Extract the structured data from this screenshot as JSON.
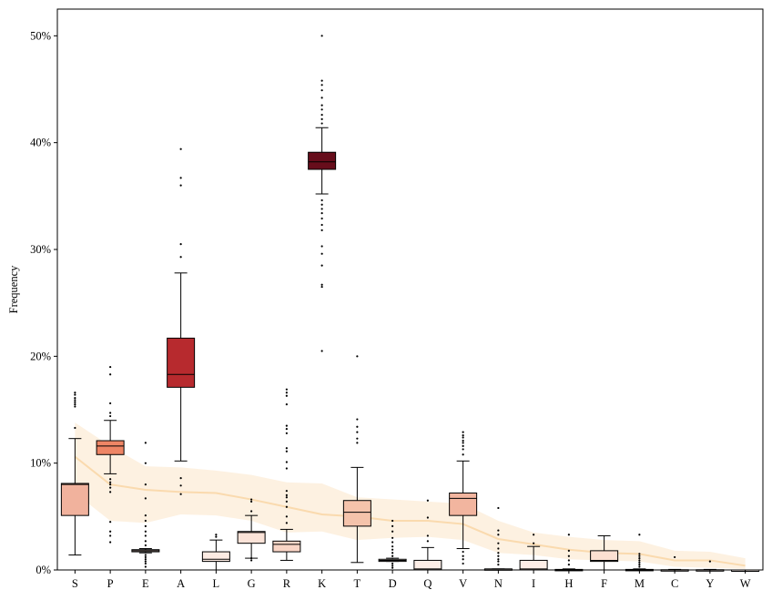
{
  "chart_data": {
    "type": "box",
    "title": "",
    "xlabel": "",
    "ylabel": "Frequency",
    "categories": [
      "S",
      "P",
      "E",
      "A",
      "L",
      "G",
      "R",
      "K",
      "T",
      "D",
      "Q",
      "V",
      "N",
      "I",
      "H",
      "F",
      "M",
      "C",
      "Y",
      "W"
    ],
    "ylim": [
      0,
      52.5
    ],
    "yticks": [
      0,
      10,
      20,
      30,
      40,
      50
    ],
    "ytick_labels": [
      "0%",
      "10%",
      "20%",
      "30%",
      "40%",
      "50%"
    ],
    "grid": false,
    "legend": "none",
    "boxes": [
      {
        "label": "S",
        "whislo": 1.4,
        "q1": 5.1,
        "med": 8.0,
        "q3": 8.1,
        "whishi": 12.3,
        "fliers": [
          13.3,
          15.3,
          15.5,
          15.7,
          15.9,
          16.1,
          16.4,
          16.6
        ],
        "color": "#f1b29d"
      },
      {
        "label": "P",
        "whislo": 9.0,
        "q1": 10.8,
        "med": 11.6,
        "q3": 12.1,
        "whishi": 14.0,
        "fliers": [
          2.6,
          3.2,
          3.6,
          4.5,
          7.3,
          7.7,
          8.0,
          8.2,
          8.5,
          14.4,
          14.7,
          15.6,
          18.3,
          19.0
        ],
        "color": "#ee8565"
      },
      {
        "label": "E",
        "whislo": 1.6,
        "q1": 1.7,
        "med": 1.8,
        "q3": 1.9,
        "whishi": 2.0,
        "fliers": [
          0.3,
          0.6,
          0.8,
          1.0,
          1.2,
          1.4,
          2.3,
          2.7,
          3.2,
          3.6,
          4.1,
          4.6,
          5.1,
          6.7,
          8.0,
          10.0,
          11.9
        ],
        "color": "#f9ddd0"
      },
      {
        "label": "A",
        "whislo": 10.2,
        "q1": 17.1,
        "med": 18.3,
        "q3": 21.7,
        "whishi": 27.8,
        "fliers": [
          7.1,
          7.9,
          8.6,
          29.3,
          30.5,
          36.0,
          36.7,
          39.4
        ],
        "color": "#b72a2e"
      },
      {
        "label": "L",
        "whislo": 0.0,
        "q1": 0.8,
        "med": 1.0,
        "q3": 1.7,
        "whishi": 2.8,
        "fliers": [
          3.1,
          3.3
        ],
        "color": "#fcebe3"
      },
      {
        "label": "G",
        "whislo": 1.1,
        "q1": 2.5,
        "med": 3.5,
        "q3": 3.6,
        "whishi": 5.1,
        "fliers": [
          0.9,
          1.1,
          5.5,
          6.4,
          6.6
        ],
        "color": "#fbe3d8"
      },
      {
        "label": "R",
        "whislo": 0.9,
        "q1": 1.7,
        "med": 2.4,
        "q3": 2.7,
        "whishi": 3.8,
        "fliers": [
          4.4,
          5.0,
          5.9,
          6.4,
          6.8,
          7.0,
          7.4,
          9.5,
          10.1,
          11.1,
          11.4,
          12.8,
          13.2,
          13.5,
          15.5,
          16.3,
          16.6,
          16.9
        ],
        "color": "#fad5c6"
      },
      {
        "label": "K",
        "whislo": 35.2,
        "q1": 37.5,
        "med": 38.2,
        "q3": 39.1,
        "whishi": 41.4,
        "fliers": [
          20.5,
          26.5,
          26.7,
          28.5,
          29.6,
          30.3,
          31.8,
          32.3,
          32.9,
          33.4,
          33.8,
          34.2,
          34.6,
          41.8,
          42.2,
          42.6,
          43.1,
          43.5,
          44.2,
          44.9,
          45.4,
          45.8,
          50.0
        ],
        "color": "#670d1b"
      },
      {
        "label": "T",
        "whislo": 0.7,
        "q1": 4.1,
        "med": 5.4,
        "q3": 6.5,
        "whishi": 9.6,
        "fliers": [
          11.9,
          12.3,
          12.9,
          13.4,
          14.1,
          20.0
        ],
        "color": "#f5c3ab"
      },
      {
        "label": "D",
        "whislo": 0.8,
        "q1": 0.8,
        "med": 0.9,
        "q3": 1.0,
        "whishi": 1.1,
        "fliers": [
          0.2,
          0.4,
          0.6,
          1.3,
          1.6,
          1.9,
          2.2,
          2.6,
          3.0,
          3.6,
          4.1,
          4.6
        ],
        "color": "#fdeee7"
      },
      {
        "label": "Q",
        "whislo": 0.0,
        "q1": 0.0,
        "med": 0.1,
        "q3": 0.9,
        "whishi": 2.1,
        "fliers": [
          2.7,
          3.2,
          4.9,
          6.5
        ],
        "color": "#fdeee7"
      },
      {
        "label": "V",
        "whislo": 2.0,
        "q1": 5.1,
        "med": 6.7,
        "q3": 7.2,
        "whishi": 10.2,
        "fliers": [
          0.6,
          1.0,
          1.3,
          1.7,
          10.8,
          11.3,
          11.6,
          11.9,
          12.1,
          12.4,
          12.6,
          12.9
        ],
        "color": "#f2b59f"
      },
      {
        "label": "N",
        "whislo": 0.0,
        "q1": 0.0,
        "med": 0.0,
        "q3": 0.1,
        "whishi": 0.1,
        "fliers": [
          0.5,
          0.8,
          1.0,
          1.3,
          1.6,
          2.0,
          2.5,
          3.3,
          3.7,
          5.8
        ],
        "color": "#fff2ec"
      },
      {
        "label": "I",
        "whislo": 0.0,
        "q1": 0.0,
        "med": 0.1,
        "q3": 0.9,
        "whishi": 2.2,
        "fliers": [
          2.5,
          3.3
        ],
        "color": "#fdeee7"
      },
      {
        "label": "H",
        "whislo": 0.0,
        "q1": 0.0,
        "med": 0.0,
        "q3": 0.05,
        "whishi": 0.1,
        "fliers": [
          0.5,
          0.9,
          1.3,
          1.8,
          3.3
        ],
        "color": "#fff4ef"
      },
      {
        "label": "F",
        "whislo": 0.0,
        "q1": 0.8,
        "med": 0.9,
        "q3": 1.8,
        "whishi": 3.2,
        "fliers": [],
        "color": "#fce0d2"
      },
      {
        "label": "M",
        "whislo": 0.0,
        "q1": 0.0,
        "med": 0.0,
        "q3": 0.05,
        "whishi": 0.1,
        "fliers": [
          0.3,
          0.5,
          0.7,
          0.9,
          1.1,
          1.3,
          1.5,
          3.3
        ],
        "color": "#fff4ef"
      },
      {
        "label": "C",
        "whislo": 0.0,
        "q1": 0.0,
        "med": 0.0,
        "q3": 0.02,
        "whishi": 0.05,
        "fliers": [
          1.2
        ],
        "color": "#fff5f0"
      },
      {
        "label": "Y",
        "whislo": 0.0,
        "q1": 0.0,
        "med": 0.0,
        "q3": 0.02,
        "whishi": 0.05,
        "fliers": [
          0.8
        ],
        "color": "#fff5f0"
      },
      {
        "label": "W",
        "whislo": 0.0,
        "q1": 0.0,
        "med": 0.0,
        "q3": 0.0,
        "whishi": 0.0,
        "fliers": [],
        "color": "#fff5f0"
      }
    ],
    "reference_band": {
      "color": "#fad7a8",
      "mean": [
        10.6,
        8.0,
        7.5,
        7.3,
        7.2,
        6.6,
        5.9,
        5.2,
        5.0,
        4.6,
        4.6,
        4.3,
        2.9,
        2.4,
        1.9,
        1.6,
        1.5,
        0.9,
        0.9,
        0.4
      ],
      "lower": [
        7.2,
        4.6,
        4.4,
        5.2,
        5.1,
        4.6,
        3.5,
        3.6,
        2.8,
        3.0,
        3.1,
        2.8,
        1.6,
        1.4,
        1.0,
        0.9,
        0.8,
        0.3,
        0.2,
        0.1
      ],
      "upper": [
        13.8,
        11.6,
        9.7,
        9.6,
        9.3,
        8.9,
        8.2,
        8.1,
        6.8,
        6.6,
        6.4,
        6.2,
        4.6,
        3.5,
        3.1,
        2.8,
        2.7,
        1.8,
        1.7,
        1.1
      ]
    }
  }
}
